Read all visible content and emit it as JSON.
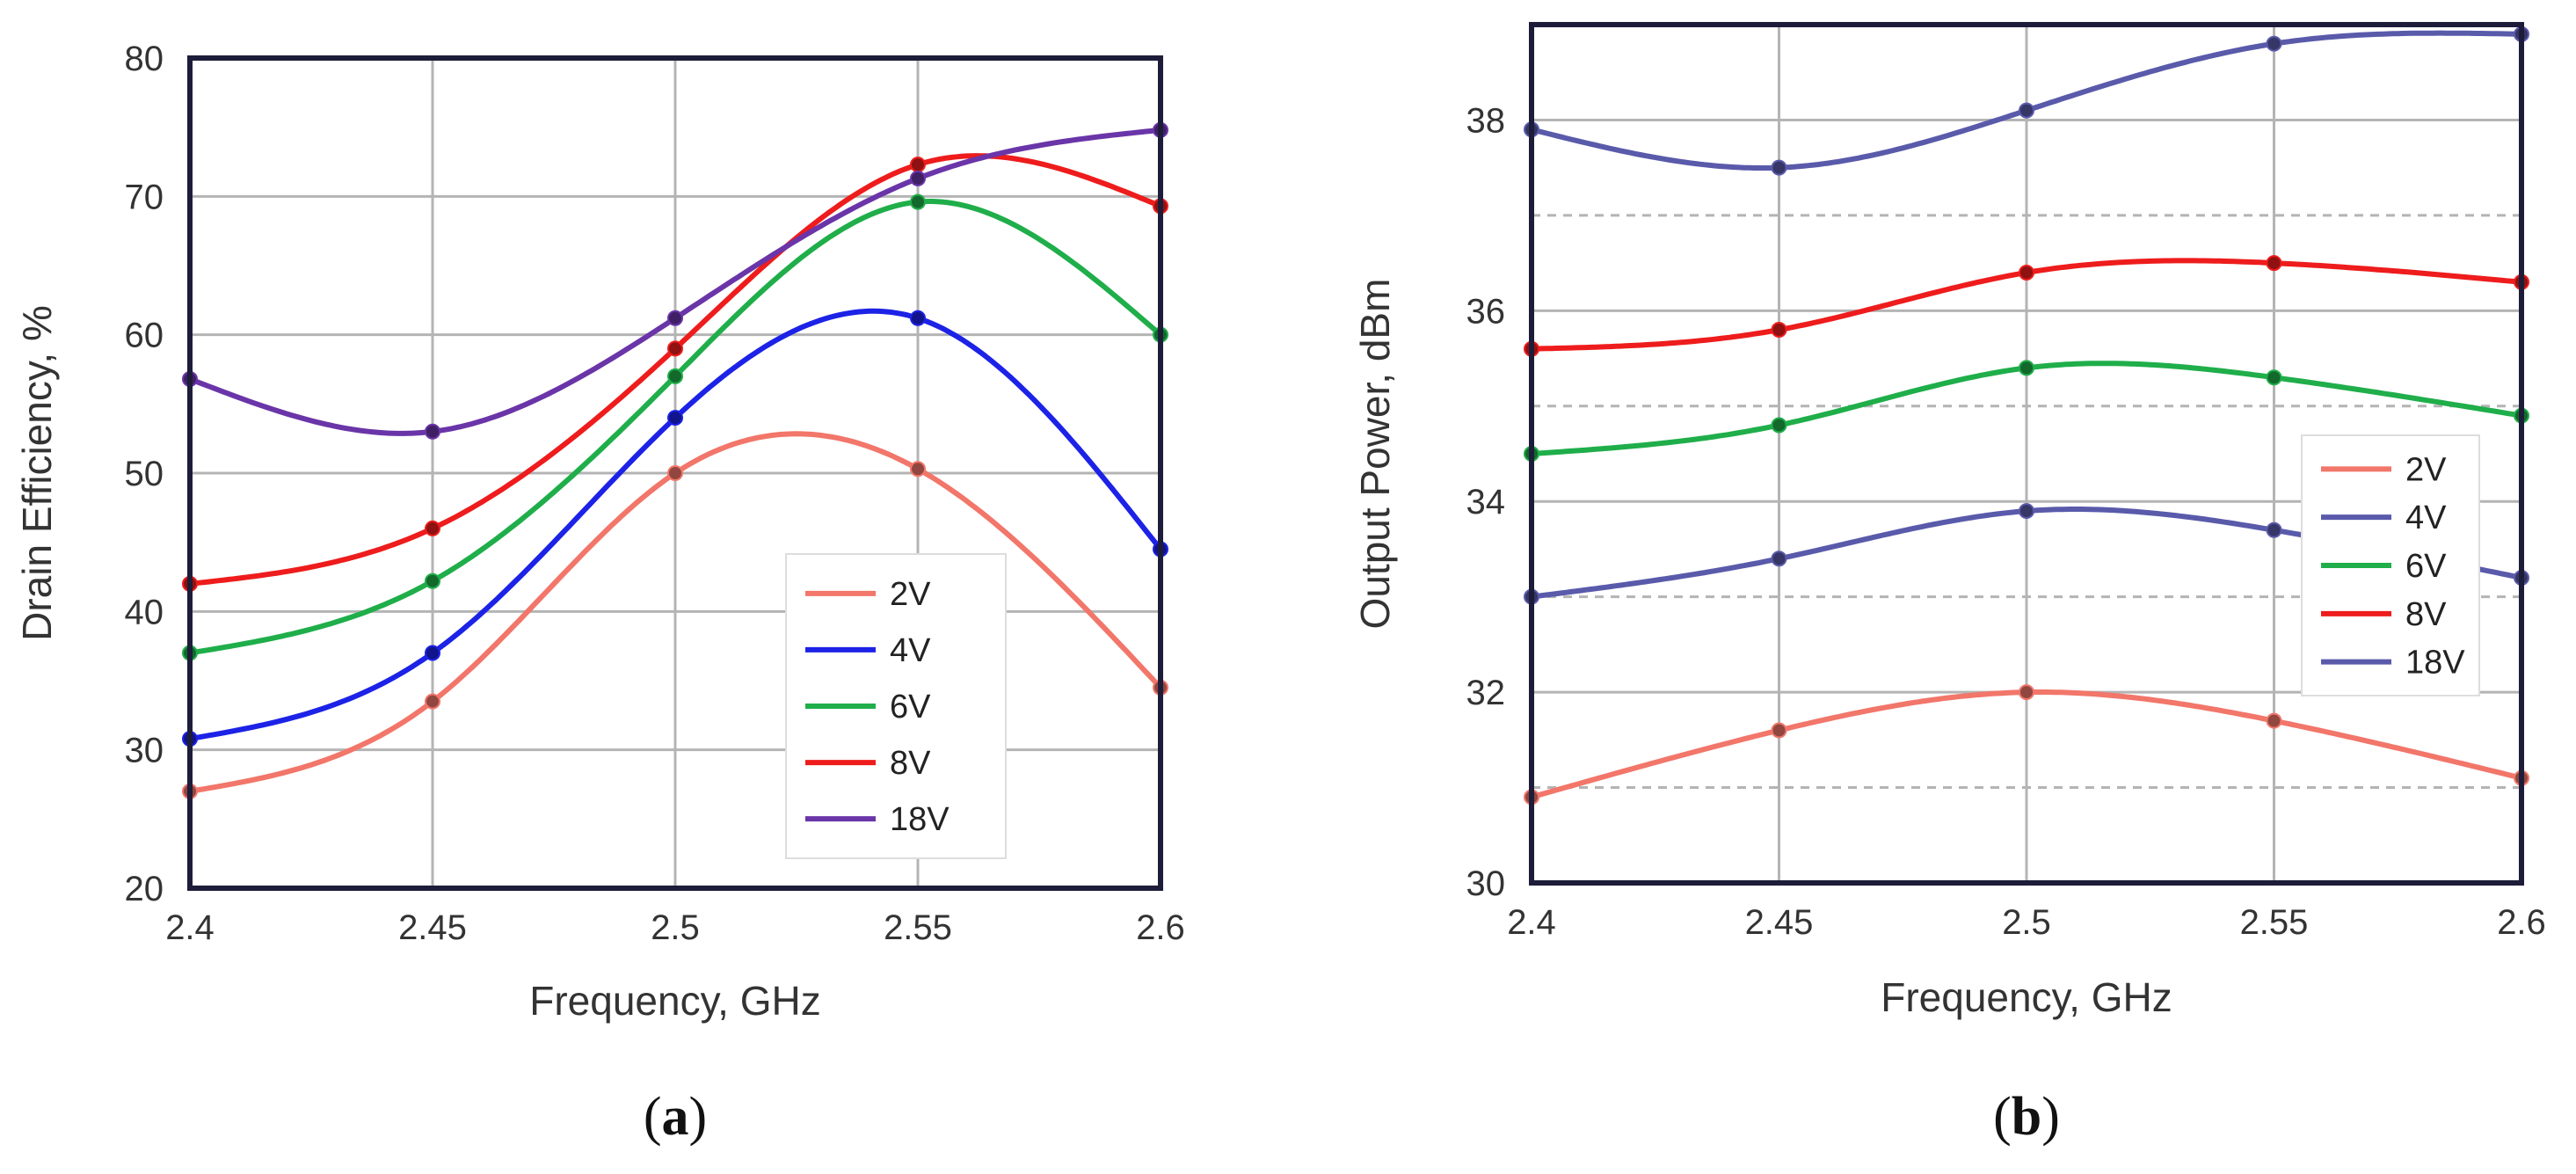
{
  "colors": {
    "2V": "#f2766a",
    "4V_a": "#1c22e6",
    "4V_b": "#5a5aab",
    "6V": "#1fae4a",
    "8V": "#ee1c1c",
    "18V": "#6a35a8",
    "grid": "#b4b4b4",
    "frame": "#1d1d3a"
  },
  "chart_data": [
    {
      "type": "line",
      "panel": "(a)",
      "panel_letter": "a",
      "title": "",
      "xlabel": "Frequency, GHz",
      "ylabel": "Drain Efficiency, %",
      "x": [
        2.4,
        2.45,
        2.5,
        2.55,
        2.6
      ],
      "x_tick_labels": [
        "2.4",
        "2.45",
        "2.5",
        "2.55",
        "2.6"
      ],
      "xlim": [
        2.4,
        2.6
      ],
      "ylim": [
        20,
        80
      ],
      "y_ticks": [
        20,
        30,
        40,
        50,
        60,
        70,
        80
      ],
      "grid": true,
      "legend": "bottom-right",
      "series": [
        {
          "name": "2V",
          "color_key": "2V",
          "values": [
            27,
            33.5,
            50,
            50.3,
            34.5
          ]
        },
        {
          "name": "4V",
          "color_key": "4V_a",
          "values": [
            30.8,
            37,
            54,
            61.2,
            44.5
          ]
        },
        {
          "name": "6V",
          "color_key": "6V",
          "values": [
            37,
            42.2,
            57,
            69.6,
            60
          ]
        },
        {
          "name": "8V",
          "color_key": "8V",
          "values": [
            42,
            46,
            59,
            72.3,
            69.3
          ]
        },
        {
          "name": "18V",
          "color_key": "18V",
          "values": [
            56.8,
            53,
            61.2,
            71.3,
            74.8
          ]
        }
      ]
    },
    {
      "type": "line",
      "panel": "(b)",
      "panel_letter": "b",
      "title": "",
      "xlabel": "Frequency, GHz",
      "ylabel": "Output Power, dBm",
      "x": [
        2.4,
        2.45,
        2.5,
        2.55,
        2.6
      ],
      "x_tick_labels": [
        "2.4",
        "2.45",
        "2.5",
        "2.55",
        "2.6"
      ],
      "xlim": [
        2.4,
        2.6
      ],
      "ylim": [
        30,
        39
      ],
      "y_ticks": [
        30,
        32,
        34,
        36,
        38
      ],
      "grid": true,
      "legend": "right",
      "series": [
        {
          "name": "2V",
          "color_key": "2V",
          "values": [
            30.9,
            31.6,
            32,
            31.7,
            31.1
          ]
        },
        {
          "name": "4V",
          "color_key": "4V_b",
          "values": [
            33,
            33.4,
            33.9,
            33.7,
            33.2
          ]
        },
        {
          "name": "6V",
          "color_key": "6V",
          "values": [
            34.5,
            34.8,
            35.4,
            35.3,
            34.9
          ]
        },
        {
          "name": "8V",
          "color_key": "8V",
          "values": [
            35.6,
            35.8,
            36.4,
            36.5,
            36.3
          ]
        },
        {
          "name": "18V",
          "color_key": "4V_b",
          "values": [
            37.9,
            37.5,
            38.1,
            38.8,
            38.9
          ]
        }
      ]
    }
  ]
}
